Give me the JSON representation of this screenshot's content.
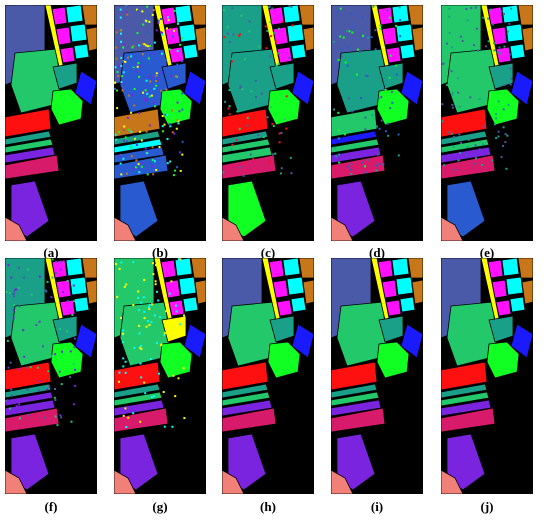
{
  "figure": {
    "panels": [
      {
        "label": "(a)",
        "variant": "ground-truth"
      },
      {
        "label": "(b)",
        "variant": "very-noisy"
      },
      {
        "label": "(c)",
        "variant": "noisy-green"
      },
      {
        "label": "(d)",
        "variant": "noisy-blue"
      },
      {
        "label": "(e)",
        "variant": "smooth-green"
      },
      {
        "label": "(f)",
        "variant": "moderate-noise"
      },
      {
        "label": "(g)",
        "variant": "yellow-artifacts"
      },
      {
        "label": "(h)",
        "variant": "clean"
      },
      {
        "label": "(i)",
        "variant": "clean"
      },
      {
        "label": "(j)",
        "variant": "clean"
      }
    ],
    "class_colors": {
      "background": "#000000",
      "slate": "#4a5aa8",
      "green": "#22c86a",
      "teal": "#1aa088",
      "yellow": "#ffff00",
      "magenta": "#ff10ff",
      "cyan": "#00ffff",
      "orange": "#c8761a",
      "blue": "#1a1aff",
      "lime": "#11ff22",
      "red": "#ff1010",
      "pink": "#d81a6a",
      "purple": "#7a24e0",
      "salmon": "#f08078",
      "royal": "#2a5ad0"
    }
  }
}
